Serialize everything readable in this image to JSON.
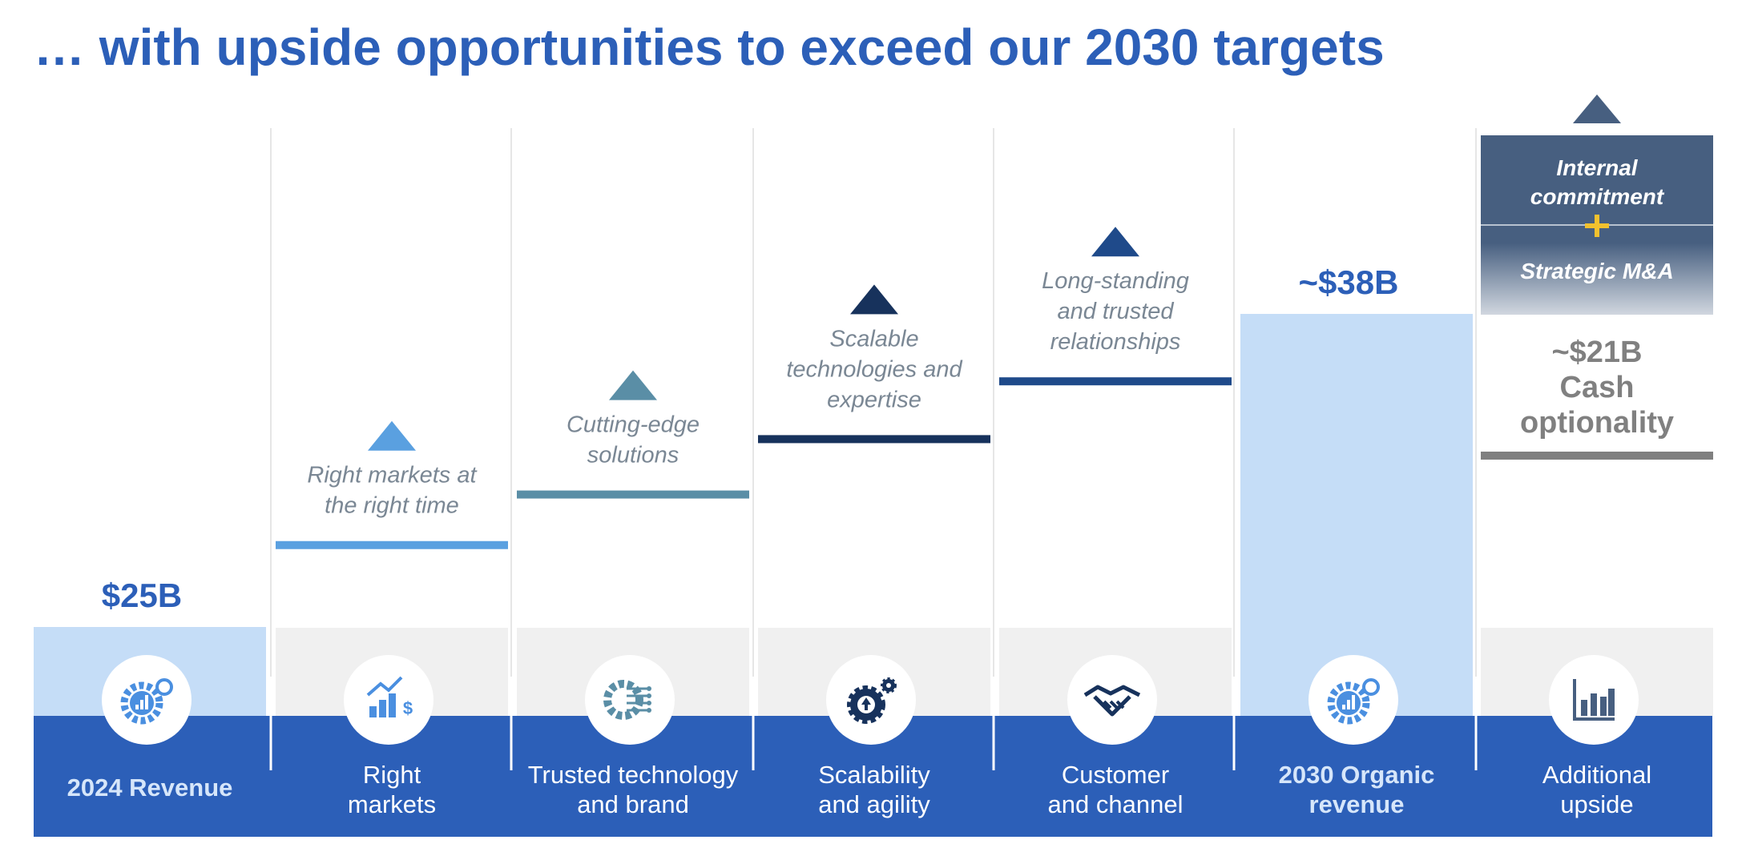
{
  "title": "… with upside opportunities to exceed our 2030 targets",
  "colors": {
    "primary_blue": "#2c5fb8",
    "light_blue": "#c5ddf7",
    "grey_band": "#f0f0f0",
    "navy": "#17325c",
    "teal": "#5a8ea6",
    "sky": "#5aa0e0",
    "dark_blue": "#1f4a8a",
    "slate": "#475f80",
    "grey": "#808080",
    "plus_yellow": "#f2c12e"
  },
  "chart_data": {
    "type": "bar",
    "subtype": "waterfall",
    "title": "… with upside opportunities to exceed our 2030 targets",
    "unit": "$B",
    "categories": [
      "2024 Revenue",
      "Right markets",
      "Trusted technology and brand",
      "Scalability and agility",
      "Customer and channel",
      "2030 Organic revenue",
      "Additional upside"
    ],
    "category_lines": [
      [
        "2024 Revenue"
      ],
      [
        "Right",
        "markets"
      ],
      [
        "Trusted technology",
        "and brand"
      ],
      [
        "Scalability",
        "and agility"
      ],
      [
        "Customer",
        "and channel"
      ],
      [
        "2030 Organic",
        "revenue"
      ],
      [
        "Additional",
        "upside"
      ]
    ],
    "bars": [
      {
        "kind": "total",
        "value": 25,
        "label": "$25B",
        "icon": "gear-dollar-icon"
      },
      {
        "kind": "step",
        "cumulative": 28.4,
        "annotation": [
          "Right markets at",
          "the right time"
        ],
        "icon": "growth-chart-dollar-icon",
        "color": "sky"
      },
      {
        "kind": "step",
        "cumulative": 30.5,
        "annotation": [
          "Cutting-edge",
          "solutions"
        ],
        "icon": "circuit-gear-icon",
        "color": "teal"
      },
      {
        "kind": "step",
        "cumulative": 32.8,
        "annotation": [
          "Scalable",
          "technologies and",
          "expertise"
        ],
        "icon": "upward-gears-icon",
        "color": "navy"
      },
      {
        "kind": "step",
        "cumulative": 35.2,
        "annotation": [
          "Long-standing",
          "and trusted",
          "relationships"
        ],
        "icon": "handshake-icon",
        "color": "dark_blue"
      },
      {
        "kind": "total",
        "value": 38,
        "label": "~$38B",
        "icon": "gear-dollar-icon"
      },
      {
        "kind": "upside",
        "value": 21,
        "label_lines": [
          "~$21B",
          "Cash",
          "optionality"
        ],
        "icon": "bar-chart-icon",
        "box_lines": [
          [
            "Internal",
            "commitment"
          ],
          [
            "Strategic M&A"
          ]
        ]
      }
    ],
    "grid": false,
    "legend": "none"
  }
}
